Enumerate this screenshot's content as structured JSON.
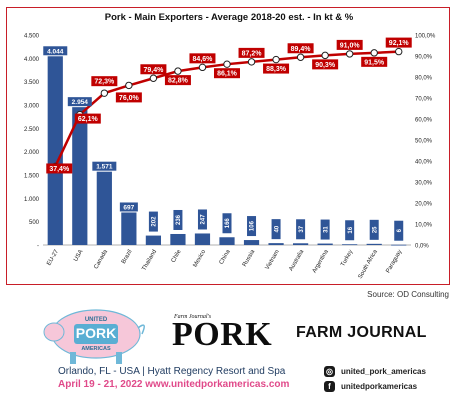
{
  "chart_data": {
    "type": "bar",
    "title": "Pork - Main Exporters - Average 2018-20 est. - In kt & %",
    "categories": [
      "EU-27",
      "USA",
      "Canada",
      "Brazil",
      "Thailand",
      "Chile",
      "Mexico",
      "China",
      "Russia",
      "Vietnam",
      "Australia",
      "Argentina",
      "Turkey",
      "South Africa",
      "Paraguay"
    ],
    "series": [
      {
        "type": "bar",
        "values": [
          4044,
          2954,
          1571,
          697,
          202,
          236,
          247,
          166,
          106,
          40,
          37,
          31,
          16,
          25,
          6
        ],
        "labels": [
          "4.044",
          "2.954",
          "1.571",
          "697",
          "202",
          "236",
          "247",
          "166",
          "106",
          "40",
          "37",
          "31",
          "16",
          "25",
          "6"
        ]
      },
      {
        "type": "line",
        "axis": "right",
        "values": [
          37.4,
          62.1,
          72.3,
          76.0,
          79.4,
          82.8,
          84.6,
          86.1,
          87.2,
          88.3,
          89.4,
          90.3,
          91.0,
          91.5,
          92.1
        ],
        "labels": [
          "37,4%",
          "62,1%",
          "72,3%",
          "76,0%",
          "79,4%",
          "82,8%",
          "84,6%",
          "86,1%",
          "87,2%",
          "88,3%",
          "89,4%",
          "90,3%",
          "91,0%",
          "91,5%",
          "92,1%"
        ]
      }
    ],
    "y_ticks": [
      "-",
      "500",
      "1.000",
      "1.500",
      "2.000",
      "2.500",
      "3.000",
      "3.500",
      "4.000",
      "4.500"
    ],
    "ylim": [
      0,
      4500
    ],
    "y2_ticks": [
      "0,0%",
      "10,0%",
      "20,0%",
      "30,0%",
      "40,0%",
      "50,0%",
      "60,0%",
      "70,0%",
      "80,0%",
      "90,0%",
      "100,0%"
    ],
    "y2lim": [
      0,
      100
    ],
    "colors": {
      "bar": "#2f5597",
      "line": "#c00000",
      "label_bar": "#2f5597",
      "label_line": "#c00000",
      "border": "#c81e28"
    }
  },
  "source": "Source: OD Consulting",
  "footer": {
    "logo_text_1": "UNITED",
    "logo_text_2": "PORK",
    "logo_text_3": "AMERICAS",
    "pork_super": "Farm Journal's",
    "pork_word": "PORK",
    "fj_brand": "FARM JOURNAL",
    "event_line": "Orlando, FL - USA | Hyatt Regency Resort and Spa",
    "dates_line": "April 19 - 21, 2022 www.unitedporkamericas.com",
    "social_1": "united_pork_americas",
    "social_2": "unitedporkamericas"
  }
}
